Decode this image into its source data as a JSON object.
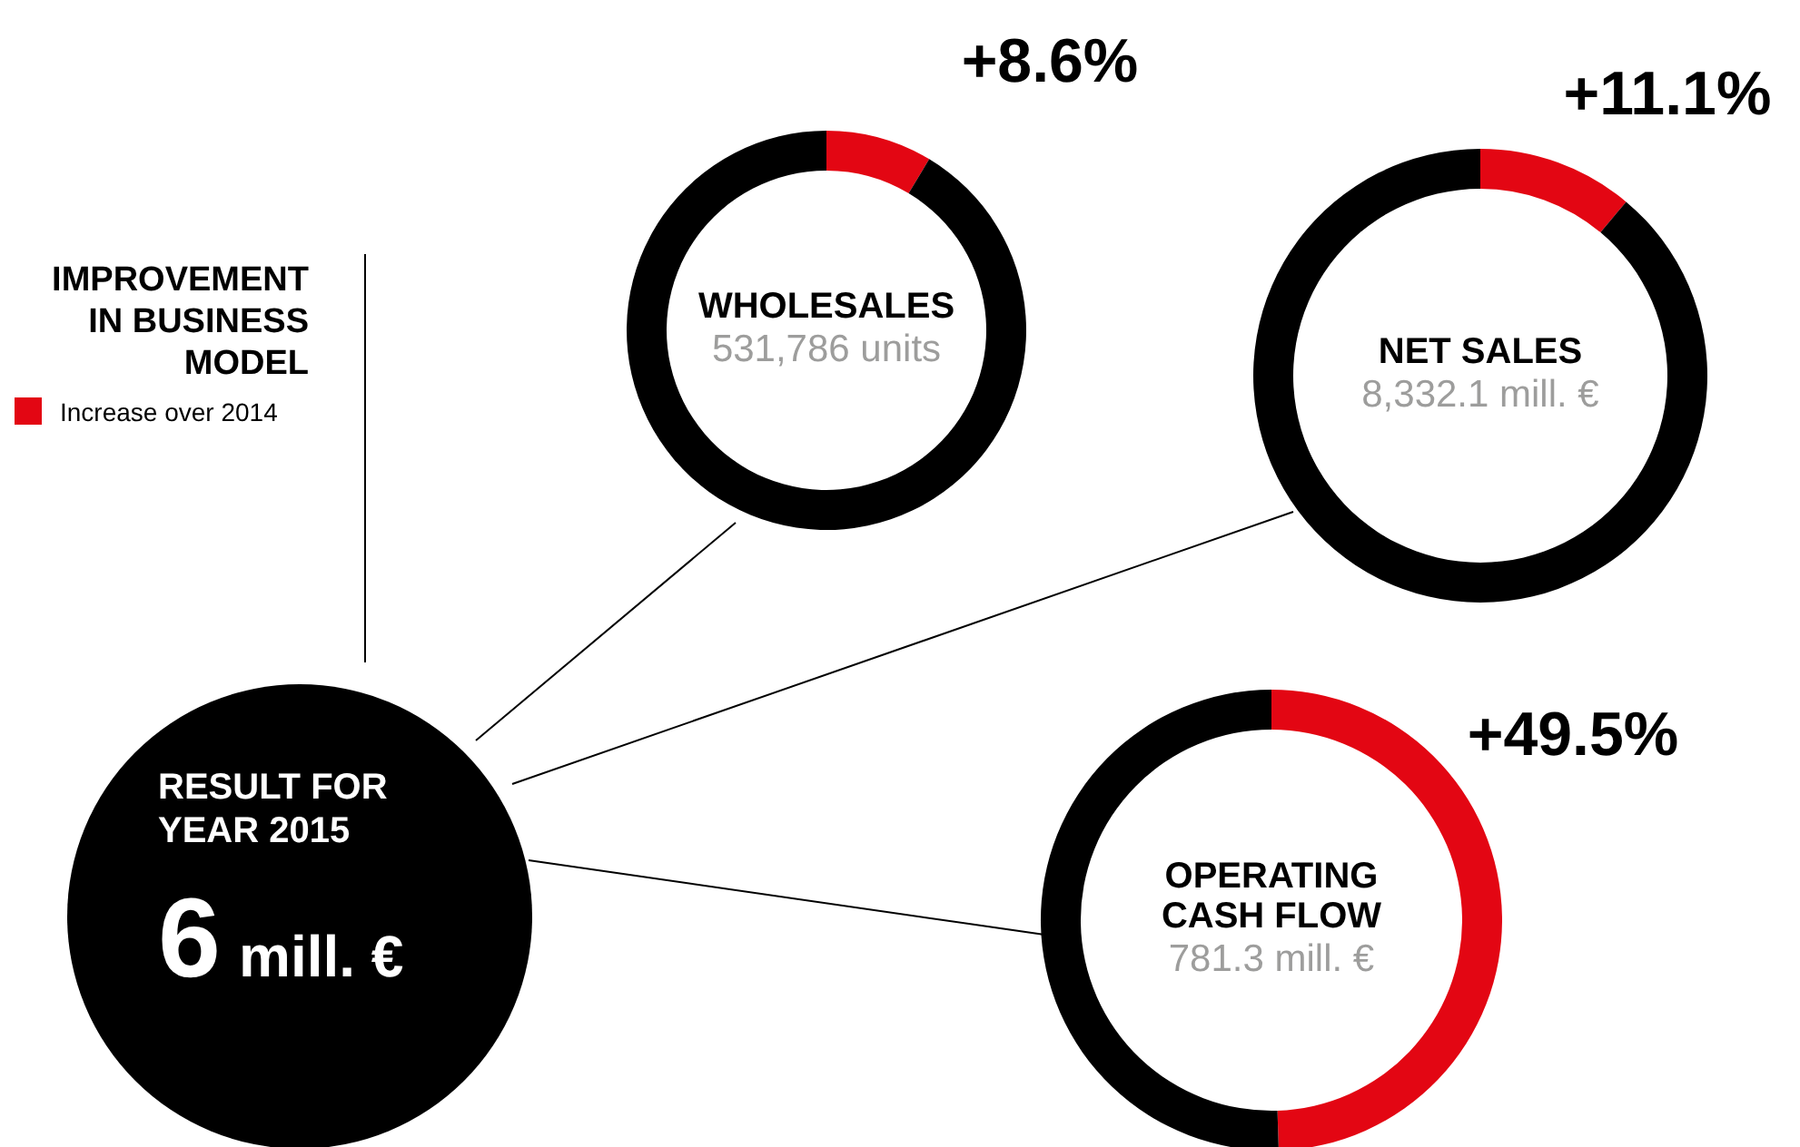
{
  "chart_data": [
    {
      "type": "donut",
      "title": "WHOLESALES",
      "subtitle": "531,786 units",
      "categories": [
        "Increase over 2014",
        null
      ],
      "values": [
        8.6,
        91.4
      ],
      "colors": [
        "#e30613",
        "#000000"
      ],
      "value_labels": [
        "+8.6%",
        null
      ],
      "legend": "left",
      "legend_title": "IMPROVEMENT IN BUSINESS MODEL"
    },
    {
      "type": "donut",
      "title": "NET SALES",
      "subtitle": "8,332.1 mill. €",
      "categories": [
        null,
        null
      ],
      "values": [
        11.1,
        88.9
      ],
      "colors": [
        "#e30613",
        "#000000"
      ],
      "value_labels": [
        "+11.1%",
        null
      ]
    },
    {
      "type": "donut",
      "title": "OPERATING CASH FLOW",
      "subtitle": "781.3 mill. €",
      "categories": [
        null,
        null
      ],
      "values": [
        49.5,
        50.5
      ],
      "colors": [
        "#e30613",
        "#000000"
      ],
      "value_labels": [
        "+49.5%",
        null
      ]
    },
    {
      "type": "other",
      "title": "RESULT FOR YEAR 2015",
      "annotations": [
        "6 mill. €"
      ]
    }
  ]
}
